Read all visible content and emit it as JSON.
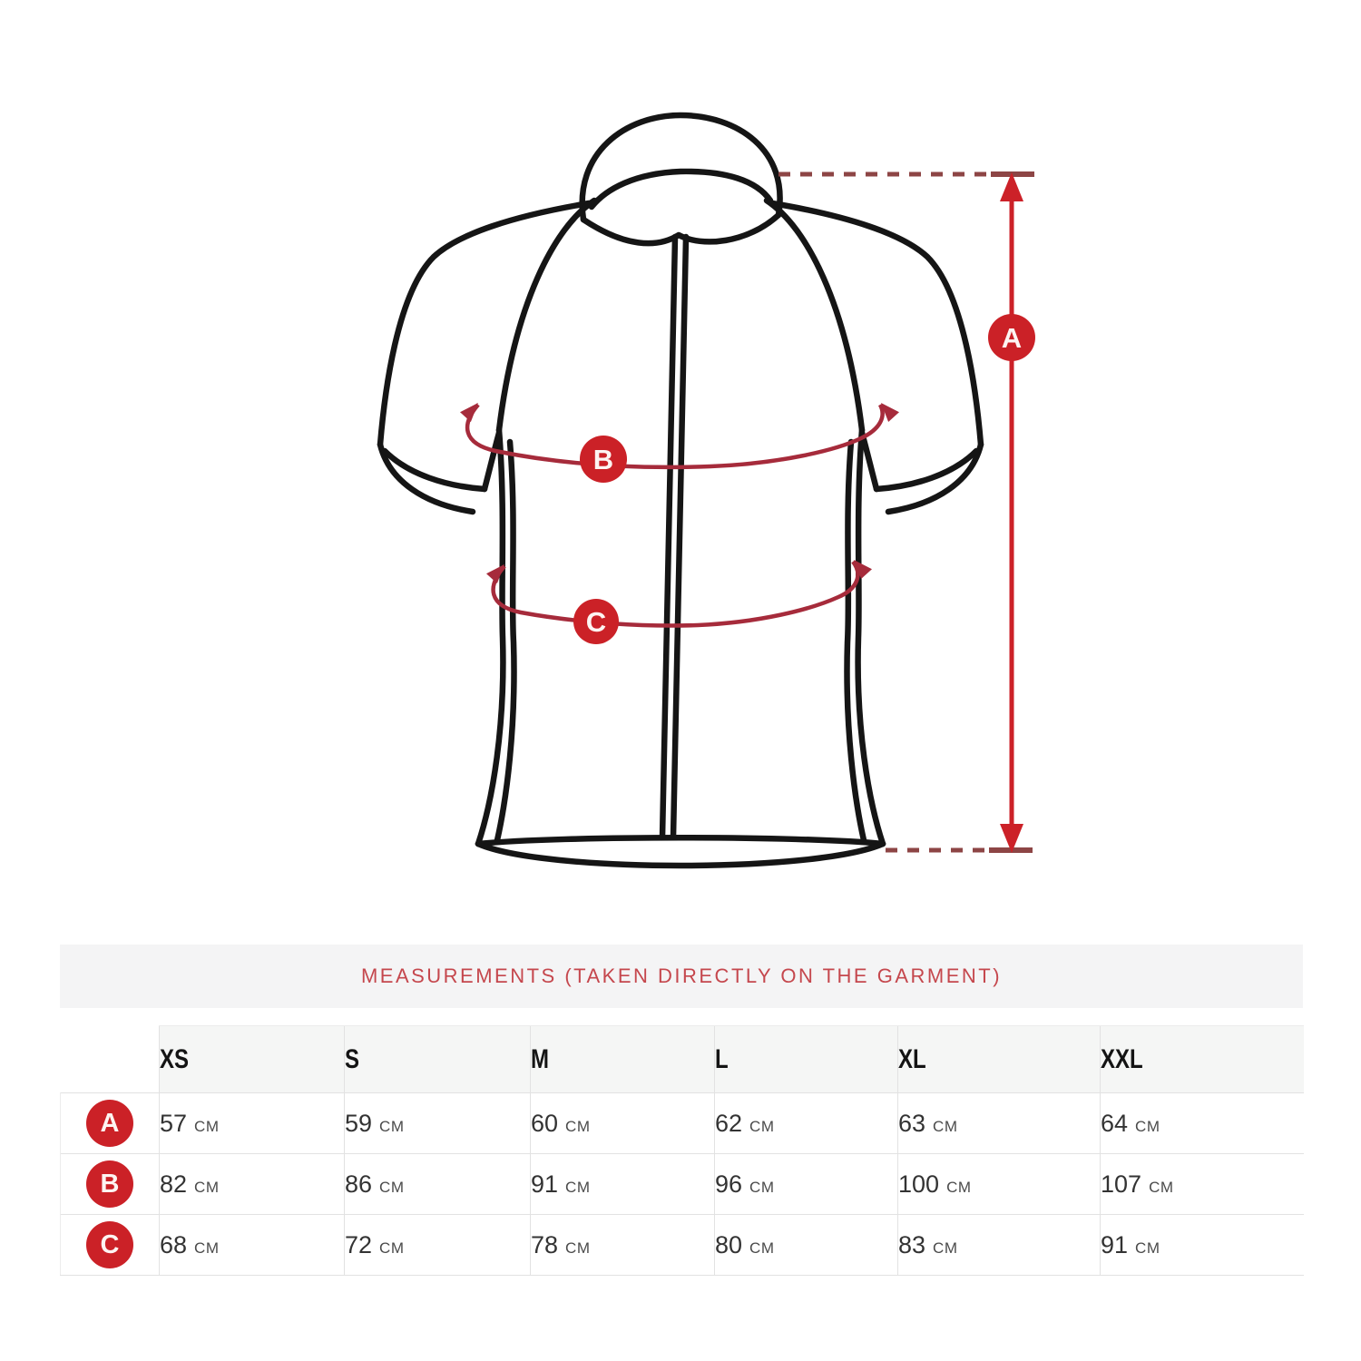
{
  "colors": {
    "accent_red": "#cb2127",
    "measure_line_red": "#cc2128",
    "measure_curve_red": "#a62b3b",
    "dashed_maroon": "#8d4545",
    "title_red": "#c5474d",
    "band_background": "#f4f4f5",
    "header_background": "#f5f6f5",
    "border": "#e2e2e2",
    "outline_black": "#151515",
    "value_text": "#333333"
  },
  "diagram": {
    "markers": {
      "a": "A",
      "b": "B",
      "c": "C"
    }
  },
  "table": {
    "title": "MEASUREMENTS (TAKEN DIRECTLY ON THE GARMENT)",
    "sizes": [
      "XS",
      "S",
      "M",
      "L",
      "XL",
      "XXL"
    ],
    "unit": "cm",
    "rows": [
      {
        "label": "A",
        "values": [
          "57",
          "59",
          "60",
          "62",
          "63",
          "64"
        ]
      },
      {
        "label": "B",
        "values": [
          "82",
          "86",
          "91",
          "96",
          "100",
          "107"
        ]
      },
      {
        "label": "C",
        "values": [
          "68",
          "72",
          "78",
          "80",
          "83",
          "91"
        ]
      }
    ]
  }
}
